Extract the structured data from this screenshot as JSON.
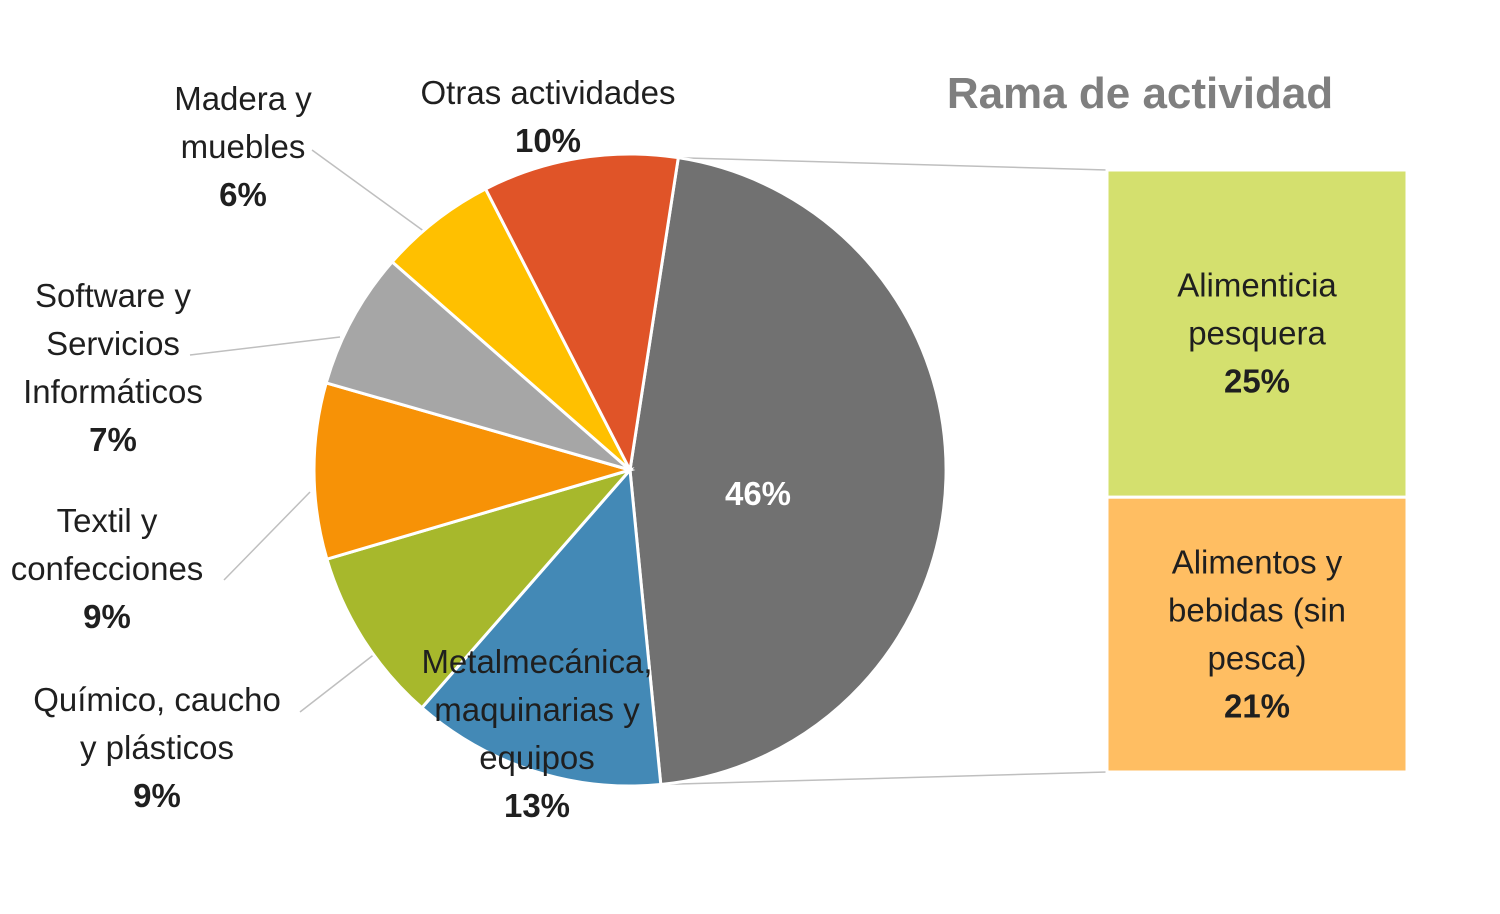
{
  "chart_data": {
    "type": "pie",
    "title": "Rama de actividad",
    "slices": [
      {
        "label": [
          "Madera y",
          "muebles"
        ],
        "value": "6%",
        "pct": 6,
        "color": "#FFC000"
      },
      {
        "label": [
          "Otras actividades"
        ],
        "value": "10%",
        "pct": 10,
        "color": "#E05428"
      },
      {
        "label": [],
        "value": "46%",
        "pct": 46,
        "color": "#717171"
      },
      {
        "label": [
          "Metalmecánica,",
          "maquinarias y",
          "equipos"
        ],
        "value": "13%",
        "pct": 13,
        "color": "#4389B6"
      },
      {
        "label": [
          "Químico, caucho",
          "y plásticos"
        ],
        "value": "9%",
        "pct": 9,
        "color": "#A7B82C"
      },
      {
        "label": [
          "Textil y",
          "confecciones"
        ],
        "value": "9%",
        "pct": 9,
        "color": "#F79206"
      },
      {
        "label": [
          "Software y",
          "Servicios",
          "Informáticos"
        ],
        "value": "7%",
        "pct": 7,
        "color": "#A6A6A6"
      }
    ],
    "breakdown": [
      {
        "label": [
          "Alimenticia",
          "pesquera"
        ],
        "value": "25%",
        "pct": 25,
        "color": "#D4E06E"
      },
      {
        "label": [
          "Alimentos y",
          "bebidas (sin",
          "pesca)"
        ],
        "value": "21%",
        "pct": 21,
        "color": "#FFBE62"
      }
    ]
  }
}
